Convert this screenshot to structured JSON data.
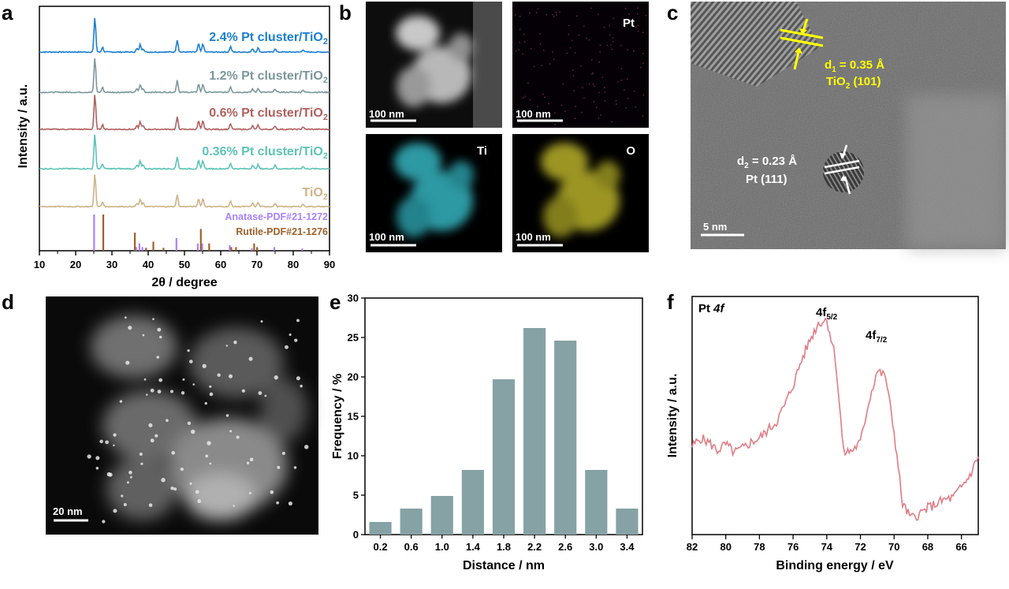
{
  "panel_letters": {
    "a": "a",
    "b": "b",
    "c": "c",
    "d": "d",
    "e": "e",
    "f": "f"
  },
  "colors": {
    "xrd": [
      "#1a7fd1",
      "#7b979a",
      "#b0605e",
      "#5dc4b4",
      "#cdb386"
    ],
    "anatase": "#a882ff",
    "rutile": "#a0602a",
    "hist_bar": "#86a2a5",
    "xps_line": "#e07c85",
    "ti_map": "#35b4bf",
    "o_map": "#b8b02a",
    "pt_map": "#8a3a6a",
    "lattice_label": "#ffff00"
  },
  "panel_b": {
    "labels": {
      "pt": "Pt",
      "ti": "Ti",
      "o": "O"
    },
    "scale": "100 nm"
  },
  "panel_c": {
    "d1": "d",
    "d1_sub": "1",
    "d1_val": " = 0.35 Å",
    "d1_phase": "TiO",
    "d1_phase_sub": "2",
    "d1_phase_idx": " (101)",
    "d2": "d",
    "d2_sub": "2",
    "d2_val": " = 0.23 Å",
    "d2_phase": "Pt (111)",
    "scale": "5 nm"
  },
  "panel_d": {
    "scale": "20 nm"
  },
  "chart_data": [
    {
      "panel": "a",
      "type": "line",
      "xlabel": "2θ / degree",
      "ylabel": "Intensity / a.u.",
      "xlim": [
        10,
        90
      ],
      "xticks": [
        10,
        20,
        30,
        40,
        50,
        60,
        70,
        80,
        90
      ],
      "series": [
        {
          "name_main": "2.4% Pt cluster/TiO",
          "name_sub": "2"
        },
        {
          "name_main": "1.2% Pt cluster/TiO",
          "name_sub": "2"
        },
        {
          "name_main": "0.6% Pt cluster/TiO",
          "name_sub": "2"
        },
        {
          "name_main": "0.36% Pt cluster/TiO",
          "name_sub": "2"
        },
        {
          "name_main": "TiO",
          "name_sub": "2"
        }
      ],
      "peaks": [
        {
          "x": 25.3,
          "h": 1.0
        },
        {
          "x": 27.4,
          "h": 0.14
        },
        {
          "x": 36.9,
          "h": 0.1
        },
        {
          "x": 37.8,
          "h": 0.22
        },
        {
          "x": 38.6,
          "h": 0.1
        },
        {
          "x": 48.0,
          "h": 0.35
        },
        {
          "x": 53.9,
          "h": 0.24
        },
        {
          "x": 55.1,
          "h": 0.24
        },
        {
          "x": 62.7,
          "h": 0.16
        },
        {
          "x": 68.8,
          "h": 0.1
        },
        {
          "x": 70.3,
          "h": 0.12
        },
        {
          "x": 75.0,
          "h": 0.1
        },
        {
          "x": 82.7,
          "h": 0.07
        }
      ],
      "references": [
        {
          "name": "Anatase-PDF#21-1272",
          "lines": [
            [
              25.3,
              1.0
            ],
            [
              36.9,
              0.1
            ],
            [
              37.8,
              0.2
            ],
            [
              38.6,
              0.1
            ],
            [
              48.0,
              0.35
            ],
            [
              53.9,
              0.2
            ],
            [
              55.1,
              0.2
            ],
            [
              62.7,
              0.15
            ],
            [
              68.8,
              0.07
            ],
            [
              70.3,
              0.07
            ],
            [
              75.0,
              0.1
            ],
            [
              82.7,
              0.06
            ]
          ]
        },
        {
          "name": "Rutile-PDF#21-1276",
          "lines": [
            [
              27.4,
              1.0
            ],
            [
              36.1,
              0.5
            ],
            [
              39.2,
              0.08
            ],
            [
              41.2,
              0.25
            ],
            [
              44.0,
              0.08
            ],
            [
              54.3,
              0.6
            ],
            [
              56.6,
              0.2
            ],
            [
              62.7,
              0.1
            ],
            [
              64.0,
              0.1
            ],
            [
              69.0,
              0.2
            ],
            [
              69.8,
              0.1
            ]
          ]
        }
      ]
    },
    {
      "panel": "e",
      "type": "bar",
      "xlabel": "Distance / nm",
      "ylabel": "Frequency  / %",
      "ylim": [
        0,
        30
      ],
      "yticks": [
        0,
        5,
        10,
        15,
        20,
        25,
        30
      ],
      "categories": [
        "0.2",
        "0.6",
        "1.0",
        "1.4",
        "1.8",
        "2.2",
        "2.6",
        "3.0",
        "3.4"
      ],
      "values": [
        1.6,
        3.3,
        4.9,
        8.2,
        19.7,
        26.2,
        24.6,
        8.2,
        3.3
      ]
    },
    {
      "panel": "f",
      "type": "line",
      "title": "Pt",
      "title_italic": "4f",
      "xlabel": "Binding  energy / eV",
      "ylabel": "Intensity / a.u.",
      "xlim": [
        82,
        65
      ],
      "xticks": [
        82,
        80,
        78,
        76,
        74,
        72,
        70,
        68,
        66
      ],
      "peak_labels": [
        {
          "main": "4f",
          "sub": "5/2",
          "x": 74.0
        },
        {
          "main": "4f",
          "sub": "7/2",
          "x": 70.7
        }
      ],
      "x": [
        82,
        81.5,
        81,
        80.5,
        80,
        79.5,
        79,
        78.5,
        78,
        77.5,
        77,
        76.5,
        76,
        75.5,
        75,
        74.5,
        74,
        73.5,
        73,
        72.5,
        72,
        71.5,
        71,
        70.5,
        70,
        69.5,
        69,
        68.5,
        68,
        67.5,
        67,
        66.5,
        66,
        65.5,
        65
      ],
      "y": [
        0.38,
        0.42,
        0.4,
        0.36,
        0.39,
        0.35,
        0.37,
        0.4,
        0.42,
        0.46,
        0.5,
        0.58,
        0.68,
        0.8,
        0.9,
        0.98,
        1.0,
        0.82,
        0.35,
        0.36,
        0.4,
        0.6,
        0.75,
        0.72,
        0.45,
        0.1,
        0.03,
        0.05,
        0.08,
        0.1,
        0.12,
        0.13,
        0.18,
        0.24,
        0.33
      ]
    }
  ]
}
